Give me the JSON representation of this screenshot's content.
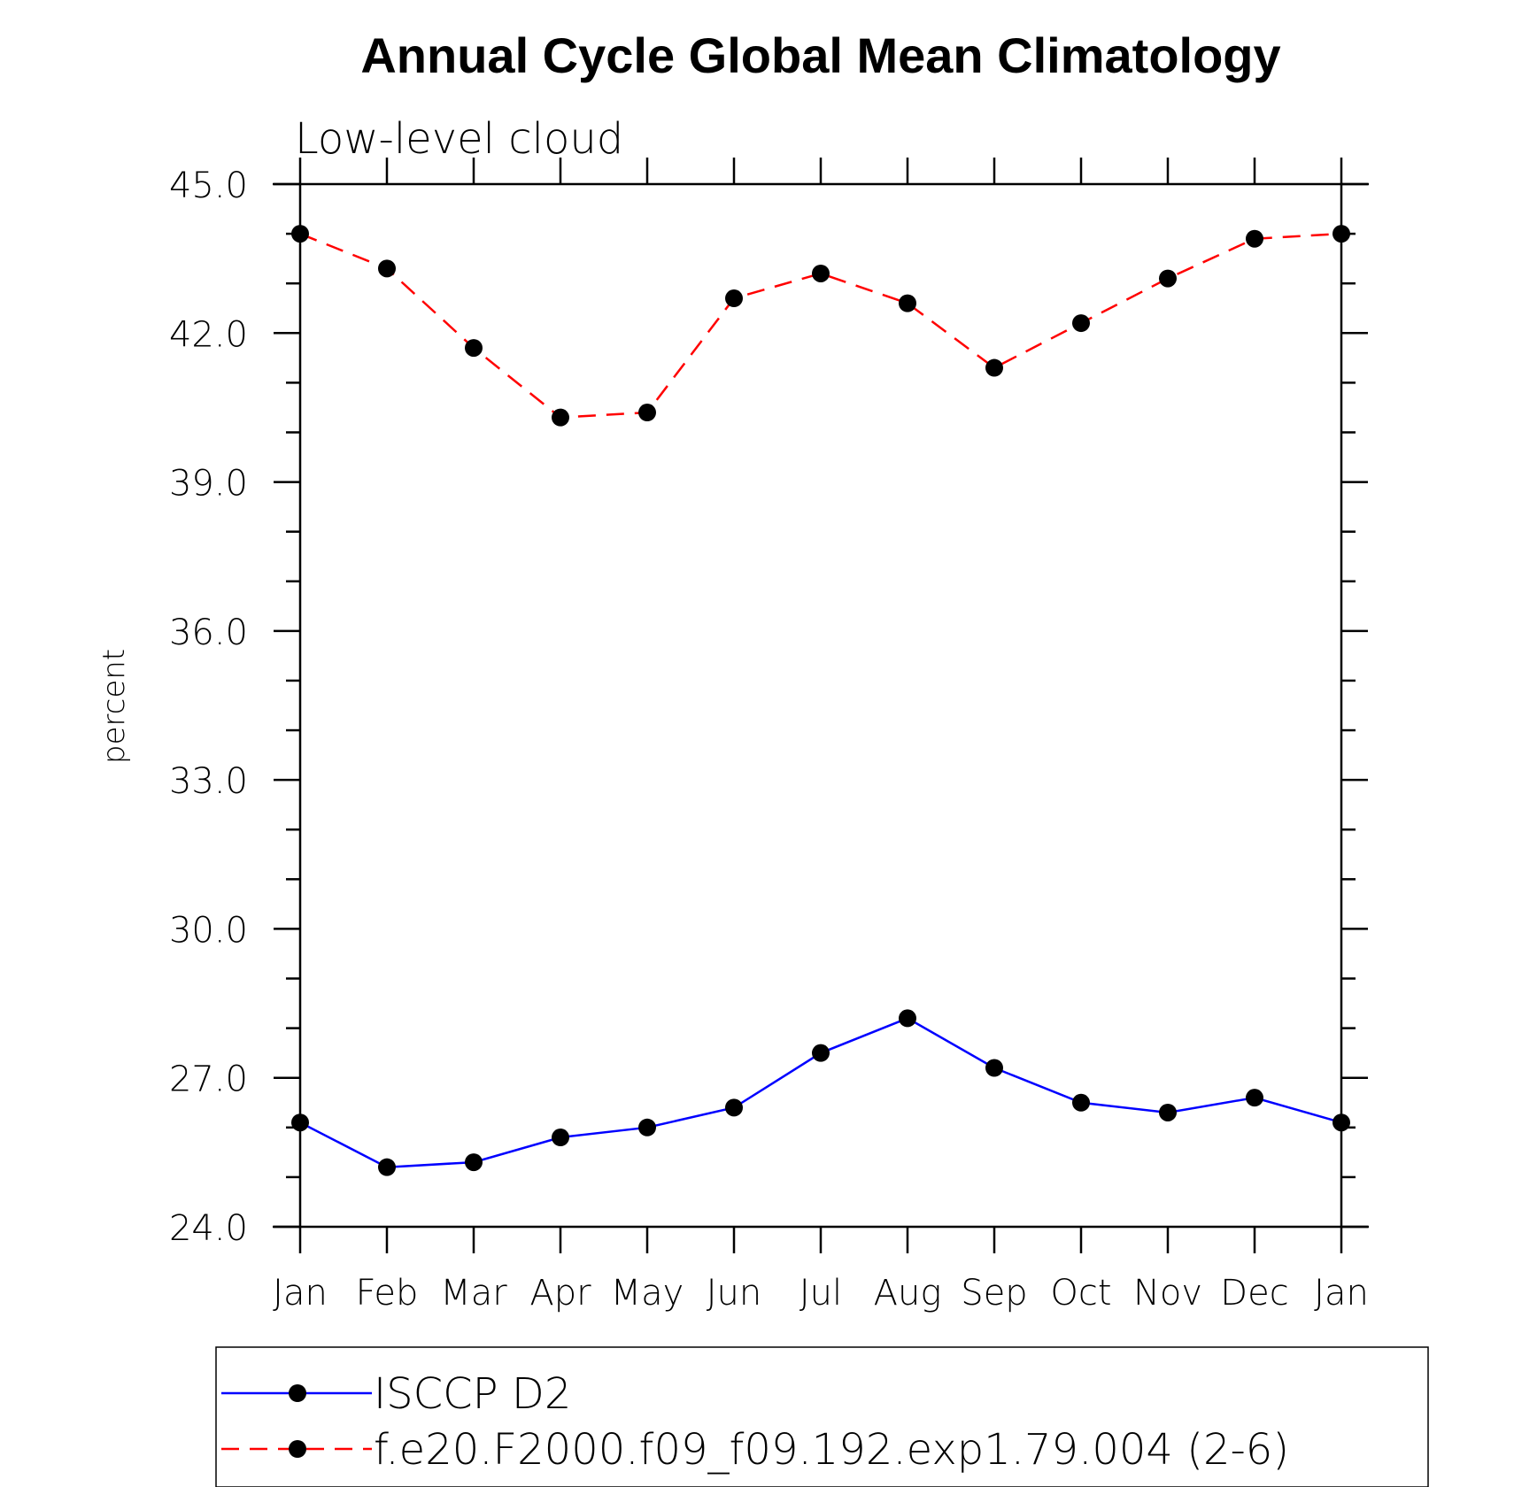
{
  "chart_data": {
    "type": "line",
    "title": "Annual Cycle Global Mean Climatology",
    "subtitle": "Low-level cloud",
    "xlabel": "",
    "ylabel": "percent",
    "categories": [
      "Jan",
      "Feb",
      "Mar",
      "Apr",
      "May",
      "Jun",
      "Jul",
      "Aug",
      "Sep",
      "Oct",
      "Nov",
      "Dec",
      "Jan"
    ],
    "ylim": [
      24.0,
      45.0
    ],
    "yticks": [
      "24.0",
      "27.0",
      "30.0",
      "33.0",
      "36.0",
      "39.0",
      "42.0",
      "45.0"
    ],
    "grid": false,
    "legend_position": "bottom",
    "series": [
      {
        "name": "ISCCP D2",
        "color": "#0000ff",
        "line_style": "solid",
        "marker": "filled-circle",
        "values": [
          26.1,
          25.2,
          25.3,
          25.8,
          26.0,
          26.4,
          27.5,
          28.2,
          27.2,
          26.5,
          26.3,
          26.6,
          26.1
        ]
      },
      {
        "name": "f.e20.F2000.f09_f09.192.exp1.79.004 (2-6)",
        "color": "#ff0000",
        "line_style": "dashed",
        "marker": "filled-circle",
        "values": [
          44.0,
          43.3,
          41.7,
          40.3,
          40.4,
          42.7,
          43.2,
          42.6,
          41.3,
          42.2,
          43.1,
          43.9,
          44.0
        ]
      }
    ]
  }
}
